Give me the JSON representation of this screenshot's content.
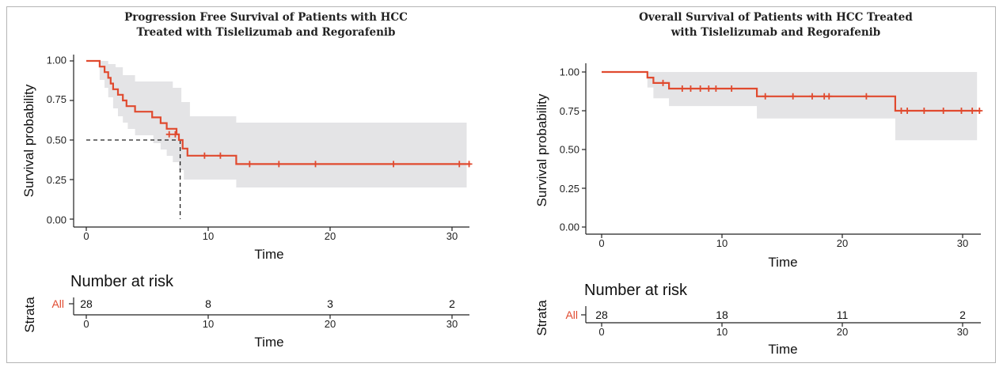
{
  "colors": {
    "curve": "#e04a2f",
    "ci": "#e4e4e6",
    "axis": "#222222",
    "median": "#222222",
    "text": "#111111"
  },
  "chart_data": [
    {
      "type": "line",
      "subtype": "kaplan-meier",
      "title": "Progression Free Survival of Patients with HCC Treated with Tislelizumab and Regorafenib",
      "title_lines": [
        "Progression Free Survival of Patients with HCC",
        "Treated with Tislelizumab and Regorafenib"
      ],
      "xlabel": "Time",
      "ylabel": "Survival probability",
      "xlim": [
        -1,
        31.5
      ],
      "ylim": [
        -0.04,
        1.04
      ],
      "xticks": [
        0,
        10,
        20,
        30
      ],
      "yticks": [
        0.0,
        0.25,
        0.5,
        0.75,
        1.0
      ],
      "ytick_labels": [
        "0.00",
        "0.25",
        "0.50",
        "0.75",
        "1.00"
      ],
      "grid": false,
      "median": 7.7,
      "steps": [
        {
          "t": 0,
          "s": 1.0
        },
        {
          "t": 0.6,
          "s": 1.0
        },
        {
          "t": 1.1,
          "s": 0.964
        },
        {
          "t": 1.5,
          "s": 0.929
        },
        {
          "t": 1.8,
          "s": 0.893
        },
        {
          "t": 2.0,
          "s": 0.857
        },
        {
          "t": 2.2,
          "s": 0.821
        },
        {
          "t": 2.6,
          "s": 0.786
        },
        {
          "t": 3.0,
          "s": 0.75
        },
        {
          "t": 3.3,
          "s": 0.714
        },
        {
          "t": 4.0,
          "s": 0.679
        },
        {
          "t": 5.4,
          "s": 0.643
        },
        {
          "t": 6.1,
          "s": 0.607
        },
        {
          "t": 6.6,
          "s": 0.571
        },
        {
          "t": 7.4,
          "s": 0.536
        },
        {
          "t": 7.6,
          "s": 0.5
        },
        {
          "t": 7.9,
          "s": 0.446
        },
        {
          "t": 8.3,
          "s": 0.401
        },
        {
          "t": 12.3,
          "s": 0.348
        }
      ],
      "end_time": 31.5,
      "censored": [
        {
          "t": 6.8,
          "s": 0.536
        },
        {
          "t": 7.3,
          "s": 0.536
        },
        {
          "t": 9.7,
          "s": 0.401
        },
        {
          "t": 11.0,
          "s": 0.401
        },
        {
          "t": 13.4,
          "s": 0.348
        },
        {
          "t": 15.8,
          "s": 0.348
        },
        {
          "t": 18.8,
          "s": 0.348
        },
        {
          "t": 25.2,
          "s": 0.348
        },
        {
          "t": 30.6,
          "s": 0.348
        },
        {
          "t": 31.4,
          "s": 0.348
        }
      ],
      "ci_upper": [
        {
          "t": 0,
          "s": 1.0
        },
        {
          "t": 1.2,
          "s": 1.0
        },
        {
          "t": 1.8,
          "s": 0.98
        },
        {
          "t": 2.4,
          "s": 0.96
        },
        {
          "t": 3.0,
          "s": 0.91
        },
        {
          "t": 4.0,
          "s": 0.87
        },
        {
          "t": 6.5,
          "s": 0.87
        },
        {
          "t": 7.1,
          "s": 0.83
        },
        {
          "t": 7.8,
          "s": 0.74
        },
        {
          "t": 8.5,
          "s": 0.65
        },
        {
          "t": 12.3,
          "s": 0.61
        },
        {
          "t": 32.0,
          "s": 0.61
        }
      ],
      "ci_lower": [
        {
          "t": 0,
          "s": 1.0
        },
        {
          "t": 0.6,
          "s": 1.0
        },
        {
          "t": 1.1,
          "s": 0.88
        },
        {
          "t": 1.5,
          "s": 0.83
        },
        {
          "t": 1.8,
          "s": 0.77
        },
        {
          "t": 2.2,
          "s": 0.7
        },
        {
          "t": 2.6,
          "s": 0.65
        },
        {
          "t": 3.0,
          "s": 0.61
        },
        {
          "t": 3.4,
          "s": 0.57
        },
        {
          "t": 4.0,
          "s": 0.53
        },
        {
          "t": 5.5,
          "s": 0.48
        },
        {
          "t": 6.1,
          "s": 0.44
        },
        {
          "t": 6.6,
          "s": 0.4
        },
        {
          "t": 7.1,
          "s": 0.36
        },
        {
          "t": 7.6,
          "s": 0.31
        },
        {
          "t": 8.0,
          "s": 0.25
        },
        {
          "t": 12.3,
          "s": 0.2
        },
        {
          "t": 32.0,
          "s": 0.2
        }
      ],
      "risk_table": {
        "title": "Number at risk",
        "strata_label": "Strata",
        "stratum": "All",
        "times": [
          0,
          10,
          20,
          30
        ],
        "counts": [
          28,
          8,
          3,
          2
        ],
        "xlabel": "Time"
      }
    },
    {
      "type": "line",
      "subtype": "kaplan-meier",
      "title": "Overall Survival of Patients with HCC Treated with Tislelizumab and Regorafenib",
      "title_lines": [
        "Overall Survival of Patients with HCC Treated",
        "with Tislelizumab and Regorafenib"
      ],
      "xlabel": "Time",
      "ylabel": "Survival probability",
      "xlim": [
        -1,
        31.5
      ],
      "ylim": [
        -0.04,
        1.04
      ],
      "xticks": [
        0,
        10,
        20,
        30
      ],
      "yticks": [
        0.0,
        0.25,
        0.5,
        0.75,
        1.0
      ],
      "ytick_labels": [
        "0.00",
        "0.25",
        "0.50",
        "0.75",
        "1.00"
      ],
      "grid": false,
      "steps": [
        {
          "t": 0,
          "s": 1.0
        },
        {
          "t": 3.8,
          "s": 0.964
        },
        {
          "t": 4.3,
          "s": 0.929
        },
        {
          "t": 5.6,
          "s": 0.893
        },
        {
          "t": 12.9,
          "s": 0.843
        },
        {
          "t": 24.4,
          "s": 0.75
        }
      ],
      "end_time": 31.5,
      "censored": [
        {
          "t": 5.1,
          "s": 0.929
        },
        {
          "t": 6.7,
          "s": 0.893
        },
        {
          "t": 7.4,
          "s": 0.893
        },
        {
          "t": 8.2,
          "s": 0.893
        },
        {
          "t": 8.9,
          "s": 0.893
        },
        {
          "t": 9.5,
          "s": 0.893
        },
        {
          "t": 10.8,
          "s": 0.893
        },
        {
          "t": 13.6,
          "s": 0.843
        },
        {
          "t": 15.9,
          "s": 0.843
        },
        {
          "t": 17.5,
          "s": 0.843
        },
        {
          "t": 18.5,
          "s": 0.843
        },
        {
          "t": 18.9,
          "s": 0.843
        },
        {
          "t": 22.0,
          "s": 0.843
        },
        {
          "t": 24.9,
          "s": 0.75
        },
        {
          "t": 25.4,
          "s": 0.75
        },
        {
          "t": 26.8,
          "s": 0.75
        },
        {
          "t": 28.4,
          "s": 0.75
        },
        {
          "t": 29.9,
          "s": 0.75
        },
        {
          "t": 30.8,
          "s": 0.75
        },
        {
          "t": 31.4,
          "s": 0.75
        }
      ],
      "ci_upper": [
        {
          "t": 0,
          "s": 1.0
        },
        {
          "t": 32.0,
          "s": 1.0
        }
      ],
      "ci_lower": [
        {
          "t": 0,
          "s": 1.0
        },
        {
          "t": 3.8,
          "s": 0.9
        },
        {
          "t": 4.3,
          "s": 0.83
        },
        {
          "t": 5.6,
          "s": 0.78
        },
        {
          "t": 12.9,
          "s": 0.7
        },
        {
          "t": 24.4,
          "s": 0.56
        },
        {
          "t": 32.0,
          "s": 0.56
        }
      ],
      "risk_table": {
        "title": "Number at risk",
        "strata_label": "Strata",
        "stratum": "All",
        "times": [
          0,
          10,
          20,
          30
        ],
        "counts": [
          28,
          18,
          11,
          2
        ],
        "xlabel": "Time"
      }
    }
  ]
}
